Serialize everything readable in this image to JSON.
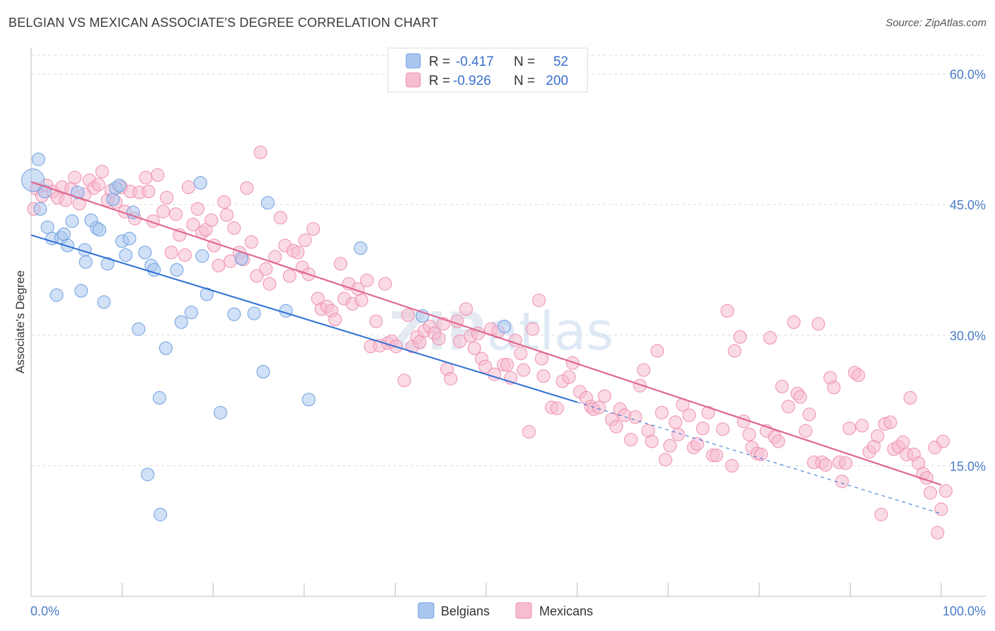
{
  "title": "BELGIAN VS MEXICAN ASSOCIATE'S DEGREE CORRELATION CHART",
  "source": "Source: ZipAtlas.com",
  "watermark": {
    "zip": "ZIP",
    "atlas": "atlas"
  },
  "colors": {
    "belgian_fill": "#a9c6ef",
    "belgian_stroke": "#6f9fe0",
    "belgian_line": "#2d6fd4",
    "mexican_fill": "#f6bcd0",
    "mexican_stroke": "#ef8fb0",
    "mexican_line": "#e0688f",
    "tick": "#4a7cc9",
    "grid": "#dddddd"
  },
  "legend": {
    "rows": [
      {
        "r_label": "R =",
        "r_value": "-0.417",
        "n_label": "N =",
        "n_value": "52"
      },
      {
        "r_label": "R =",
        "r_value": "-0.926",
        "n_label": "N =",
        "n_value": "200"
      }
    ]
  },
  "bottom_legend": {
    "belgians": "Belgians",
    "mexicans": "Mexicans"
  },
  "chart_data": {
    "type": "scatter",
    "title": "BELGIAN VS MEXICAN ASSOCIATE'S DEGREE CORRELATION CHART",
    "xlabel": "",
    "ylabel": "Associate's Degree",
    "xlim": [
      0,
      100
    ],
    "ylim": [
      0,
      62
    ],
    "x_tick_labels": {
      "left": "0.0%",
      "right": "100.0%"
    },
    "y_ticks": [
      15,
      30,
      45,
      60
    ],
    "y_tick_labels": [
      "15.0%",
      "30.0%",
      "45.0%",
      "60.0%"
    ],
    "grid": true,
    "legend_position": "top-center",
    "series": [
      {
        "name": "Belgians",
        "r": -0.417,
        "n": 52,
        "trend": {
          "x0": 0,
          "y0": 41.5,
          "x1": 60,
          "y1": 22.3,
          "dash_to_x": 100,
          "dash_to_y": 9.5
        },
        "points": [
          [
            0.2,
            47.8
          ],
          [
            0.8,
            50.2
          ],
          [
            1.0,
            44.5
          ],
          [
            1.5,
            46.5
          ],
          [
            1.8,
            42.4
          ],
          [
            2.3,
            41.1
          ],
          [
            2.8,
            34.6
          ],
          [
            3.3,
            41.2
          ],
          [
            3.6,
            41.6
          ],
          [
            4.0,
            40.3
          ],
          [
            4.5,
            43.1
          ],
          [
            5.1,
            46.4
          ],
          [
            5.5,
            35.1
          ],
          [
            5.9,
            39.8
          ],
          [
            6.0,
            38.4
          ],
          [
            6.6,
            43.2
          ],
          [
            7.2,
            42.3
          ],
          [
            7.5,
            42.1
          ],
          [
            8.0,
            33.8
          ],
          [
            8.4,
            38.2
          ],
          [
            9.0,
            45.6
          ],
          [
            9.3,
            46.9
          ],
          [
            9.7,
            47.2
          ],
          [
            10.0,
            40.8
          ],
          [
            10.4,
            39.2
          ],
          [
            10.8,
            41.1
          ],
          [
            11.2,
            44.1
          ],
          [
            11.8,
            30.7
          ],
          [
            12.5,
            39.5
          ],
          [
            12.8,
            14.0
          ],
          [
            13.2,
            38.0
          ],
          [
            13.5,
            37.5
          ],
          [
            14.1,
            22.8
          ],
          [
            14.2,
            9.4
          ],
          [
            14.8,
            28.5
          ],
          [
            16.0,
            37.5
          ],
          [
            16.5,
            31.5
          ],
          [
            17.6,
            32.6
          ],
          [
            18.6,
            47.5
          ],
          [
            18.8,
            39.1
          ],
          [
            19.3,
            34.7
          ],
          [
            20.8,
            21.1
          ],
          [
            22.3,
            32.4
          ],
          [
            23.1,
            38.8
          ],
          [
            24.5,
            32.5
          ],
          [
            25.5,
            25.8
          ],
          [
            26.0,
            45.2
          ],
          [
            28.0,
            32.8
          ],
          [
            30.5,
            22.6
          ],
          [
            36.2,
            40.0
          ],
          [
            43.0,
            32.2
          ],
          [
            52.0,
            31.0
          ]
        ]
      },
      {
        "name": "Mexicans",
        "r": -0.926,
        "n": 200,
        "trend": {
          "x0": 0,
          "y0": 47.6,
          "x1": 100,
          "y1": 12.8
        },
        "points": [
          [
            0.3,
            44.5
          ],
          [
            0.6,
            46.8
          ],
          [
            1.2,
            46.0
          ],
          [
            1.7,
            47.2
          ],
          [
            2.4,
            46.5
          ],
          [
            2.9,
            45.8
          ],
          [
            3.4,
            47.0
          ],
          [
            3.8,
            45.5
          ],
          [
            4.4,
            46.8
          ],
          [
            4.8,
            48.1
          ],
          [
            5.3,
            45.1
          ],
          [
            5.9,
            46.2
          ],
          [
            6.4,
            47.8
          ],
          [
            6.9,
            46.9
          ],
          [
            7.4,
            47.3
          ],
          [
            7.8,
            48.8
          ],
          [
            8.4,
            45.5
          ],
          [
            8.8,
            46.6
          ],
          [
            9.3,
            45.3
          ],
          [
            9.9,
            47.0
          ],
          [
            10.3,
            44.2
          ],
          [
            10.9,
            46.5
          ],
          [
            11.4,
            43.4
          ],
          [
            11.9,
            46.4
          ],
          [
            12.6,
            48.1
          ],
          [
            12.9,
            46.5
          ],
          [
            13.4,
            43.1
          ],
          [
            13.9,
            48.4
          ],
          [
            14.5,
            44.2
          ],
          [
            14.9,
            45.8
          ],
          [
            15.4,
            39.5
          ],
          [
            15.9,
            43.9
          ],
          [
            16.3,
            41.5
          ],
          [
            16.9,
            39.2
          ],
          [
            17.3,
            47.0
          ],
          [
            17.8,
            42.7
          ],
          [
            18.3,
            44.5
          ],
          [
            18.8,
            41.8
          ],
          [
            19.2,
            42.1
          ],
          [
            19.8,
            43.2
          ],
          [
            20.1,
            40.3
          ],
          [
            20.6,
            38.0
          ],
          [
            21.2,
            45.3
          ],
          [
            21.5,
            43.8
          ],
          [
            21.9,
            38.5
          ],
          [
            22.3,
            42.3
          ],
          [
            22.9,
            39.5
          ],
          [
            23.3,
            38.7
          ],
          [
            23.7,
            46.9
          ],
          [
            24.2,
            40.7
          ],
          [
            24.8,
            36.8
          ],
          [
            25.2,
            51.0
          ],
          [
            25.8,
            37.6
          ],
          [
            26.2,
            35.9
          ],
          [
            26.8,
            39.0
          ],
          [
            27.4,
            43.5
          ],
          [
            27.9,
            40.3
          ],
          [
            28.4,
            36.8
          ],
          [
            28.8,
            39.7
          ],
          [
            29.3,
            39.5
          ],
          [
            29.8,
            37.8
          ],
          [
            30.1,
            40.9
          ],
          [
            30.5,
            37.0
          ],
          [
            31.0,
            42.2
          ],
          [
            31.5,
            34.2
          ],
          [
            31.9,
            33.0
          ],
          [
            32.5,
            33.3
          ],
          [
            33.0,
            32.8
          ],
          [
            33.4,
            31.8
          ],
          [
            34.0,
            38.2
          ],
          [
            34.4,
            34.2
          ],
          [
            34.9,
            35.9
          ],
          [
            35.3,
            33.6
          ],
          [
            35.9,
            35.3
          ],
          [
            36.3,
            34.0
          ],
          [
            36.9,
            36.3
          ],
          [
            37.3,
            28.7
          ],
          [
            37.9,
            31.6
          ],
          [
            38.3,
            28.8
          ],
          [
            38.9,
            35.9
          ],
          [
            39.2,
            29.1
          ],
          [
            39.6,
            29.3
          ],
          [
            40.1,
            28.7
          ],
          [
            41.0,
            24.8
          ],
          [
            41.4,
            32.3
          ],
          [
            41.9,
            28.7
          ],
          [
            42.4,
            29.8
          ],
          [
            42.7,
            29.2
          ],
          [
            43.2,
            30.5
          ],
          [
            43.8,
            31.0
          ],
          [
            44.3,
            30.2
          ],
          [
            44.8,
            29.6
          ],
          [
            45.3,
            31.3
          ],
          [
            45.7,
            26.1
          ],
          [
            46.1,
            25.0
          ],
          [
            46.8,
            31.6
          ],
          [
            47.1,
            29.3
          ],
          [
            47.8,
            33.0
          ],
          [
            48.3,
            29.9
          ],
          [
            48.7,
            28.5
          ],
          [
            49.1,
            30.2
          ],
          [
            49.5,
            27.3
          ],
          [
            49.9,
            26.4
          ],
          [
            50.5,
            30.7
          ],
          [
            50.9,
            25.5
          ],
          [
            51.3,
            30.4
          ],
          [
            51.9,
            26.6
          ],
          [
            52.3,
            26.6
          ],
          [
            52.7,
            25.1
          ],
          [
            53.2,
            29.4
          ],
          [
            53.8,
            27.9
          ],
          [
            54.1,
            26.0
          ],
          [
            54.7,
            18.9
          ],
          [
            55.1,
            30.7
          ],
          [
            55.8,
            34.0
          ],
          [
            56.1,
            27.3
          ],
          [
            56.3,
            25.3
          ],
          [
            57.2,
            21.7
          ],
          [
            57.8,
            21.6
          ],
          [
            58.4,
            24.7
          ],
          [
            59.1,
            25.2
          ],
          [
            59.5,
            26.8
          ],
          [
            60.3,
            23.5
          ],
          [
            61.0,
            22.8
          ],
          [
            61.5,
            21.8
          ],
          [
            61.8,
            21.5
          ],
          [
            62.4,
            21.7
          ],
          [
            63.0,
            23.0
          ],
          [
            63.8,
            20.3
          ],
          [
            64.3,
            19.5
          ],
          [
            64.7,
            21.5
          ],
          [
            65.2,
            20.8
          ],
          [
            65.9,
            18.0
          ],
          [
            66.4,
            20.6
          ],
          [
            66.9,
            24.2
          ],
          [
            67.3,
            26.0
          ],
          [
            67.8,
            19.0
          ],
          [
            68.2,
            17.8
          ],
          [
            68.8,
            28.2
          ],
          [
            69.3,
            21.1
          ],
          [
            69.7,
            15.7
          ],
          [
            70.2,
            17.3
          ],
          [
            70.8,
            20.0
          ],
          [
            71.1,
            18.6
          ],
          [
            71.6,
            22.0
          ],
          [
            72.3,
            20.8
          ],
          [
            72.8,
            17.1
          ],
          [
            73.2,
            17.5
          ],
          [
            73.8,
            19.3
          ],
          [
            74.4,
            21.1
          ],
          [
            74.9,
            16.2
          ],
          [
            75.3,
            16.2
          ],
          [
            76.0,
            19.2
          ],
          [
            76.5,
            32.8
          ],
          [
            77.0,
            15.0
          ],
          [
            77.3,
            28.2
          ],
          [
            77.9,
            29.8
          ],
          [
            78.3,
            20.1
          ],
          [
            78.9,
            18.6
          ],
          [
            79.2,
            17.1
          ],
          [
            79.8,
            16.4
          ],
          [
            80.2,
            16.3
          ],
          [
            80.8,
            19.0
          ],
          [
            81.2,
            29.7
          ],
          [
            81.7,
            18.3
          ],
          [
            82.1,
            17.8
          ],
          [
            82.5,
            24.1
          ],
          [
            83.2,
            21.8
          ],
          [
            83.8,
            31.5
          ],
          [
            84.2,
            23.3
          ],
          [
            84.5,
            22.9
          ],
          [
            85.1,
            19.0
          ],
          [
            85.5,
            20.9
          ],
          [
            86.0,
            15.4
          ],
          [
            86.5,
            31.3
          ],
          [
            86.9,
            15.4
          ],
          [
            87.3,
            15.1
          ],
          [
            87.8,
            25.1
          ],
          [
            88.2,
            24.0
          ],
          [
            88.8,
            15.4
          ],
          [
            89.1,
            13.2
          ],
          [
            89.5,
            15.3
          ],
          [
            89.9,
            19.3
          ],
          [
            90.5,
            25.7
          ],
          [
            90.9,
            25.4
          ],
          [
            91.3,
            19.6
          ],
          [
            92.1,
            16.6
          ],
          [
            92.6,
            17.2
          ],
          [
            93.0,
            18.4
          ],
          [
            93.4,
            9.4
          ],
          [
            93.8,
            19.8
          ],
          [
            94.4,
            20.0
          ],
          [
            94.8,
            16.9
          ],
          [
            95.3,
            17.2
          ],
          [
            95.8,
            17.7
          ],
          [
            96.2,
            16.3
          ],
          [
            96.6,
            22.8
          ],
          [
            97.0,
            16.3
          ],
          [
            97.5,
            15.3
          ],
          [
            98.0,
            14.1
          ],
          [
            98.4,
            13.6
          ],
          [
            98.8,
            11.9
          ],
          [
            99.3,
            17.1
          ],
          [
            99.6,
            7.3
          ],
          [
            100.0,
            10.0
          ],
          [
            100.2,
            17.8
          ],
          [
            100.5,
            12.1
          ]
        ]
      }
    ]
  }
}
